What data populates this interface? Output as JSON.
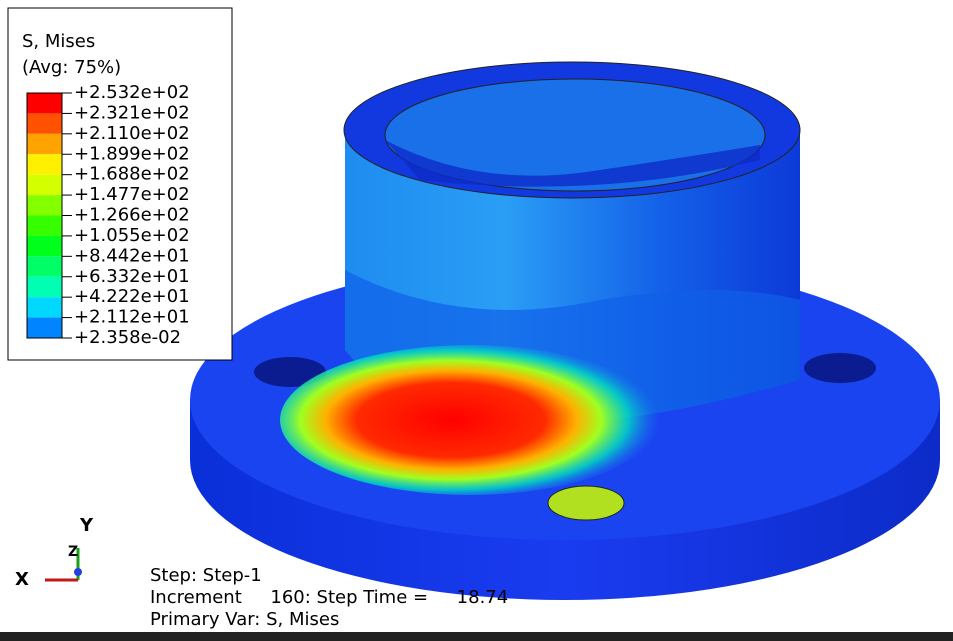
{
  "legend": {
    "title": "S, Mises",
    "subtitle": "(Avg: 75%)",
    "levels": [
      "+2.532e+02",
      "+2.321e+02",
      "+2.110e+02",
      "+1.899e+02",
      "+1.688e+02",
      "+1.477e+02",
      "+1.266e+02",
      "+1.055e+02",
      "+8.442e+01",
      "+6.332e+01",
      "+4.222e+01",
      "+2.112e+01",
      "+2.358e-02"
    ],
    "colors": [
      "#ff0000",
      "#ff5200",
      "#ffa300",
      "#fff000",
      "#d4ff00",
      "#84ff00",
      "#36ff00",
      "#00ff1a",
      "#00ff66",
      "#00ffb2",
      "#00d8ff",
      "#0084ff",
      "#0028ff"
    ]
  },
  "triad": {
    "y": "Y",
    "z": "Z",
    "x": "X"
  },
  "info": {
    "step": "Step: Step-1",
    "increment": "Increment     160: Step Time =     18.74",
    "primary": "Primary Var: S, Mises"
  }
}
